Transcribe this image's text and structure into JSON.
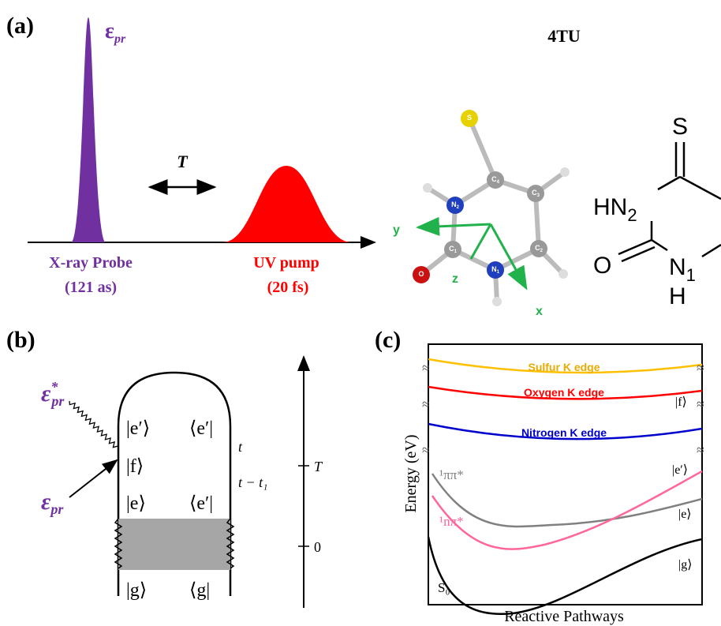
{
  "panel_a": {
    "label": "(a)",
    "probe_symbol": "ε",
    "probe_sub": "pr",
    "delay": "T",
    "probe_label": "X-ray Probe",
    "probe_duration": "(121 as)",
    "pump_label": "UV pump",
    "pump_duration": "(20 fs)",
    "molecule": "4TU",
    "atoms": [
      {
        "el": "S",
        "sub": ""
      },
      {
        "el": "C",
        "sub": "4"
      },
      {
        "el": "C",
        "sub": "3"
      },
      {
        "el": "N",
        "sub": "2"
      },
      {
        "el": "C",
        "sub": "1"
      },
      {
        "el": "C",
        "sub": "2"
      },
      {
        "el": "N",
        "sub": "1"
      },
      {
        "el": "O",
        "sub": ""
      }
    ],
    "axes": [
      "x",
      "y",
      "z"
    ],
    "structure": {
      "sulfur": "S",
      "n2": "HN",
      "n2_sub": "2",
      "oxygen": "O",
      "n1": "N",
      "n1_sub": "1",
      "hydrogen": "H"
    }
  },
  "panel_b": {
    "label": "(b)",
    "eps": "ε",
    "star": "*",
    "sub": "pr",
    "kets": [
      "|e′⟩",
      "⟨e′|",
      "|f⟩",
      "|e⟩",
      "⟨e′|",
      "|g⟩",
      "⟨g|"
    ],
    "times": [
      "t",
      "t − t₁"
    ],
    "axis_ticks": [
      "T",
      "0"
    ]
  },
  "panel_c": {
    "label": "(c)",
    "edges": [
      "Sulfur K edge",
      "Oxygen K edge",
      "Nitrogen K edge"
    ],
    "states": [
      "|f⟩",
      "|e′⟩",
      "|e⟩",
      "|g⟩"
    ],
    "curves": [
      "¹ππ*",
      "¹nπ*",
      "S₀"
    ],
    "y_label": "Energy (eV)",
    "x_label": "Reactive Pathways"
  }
}
